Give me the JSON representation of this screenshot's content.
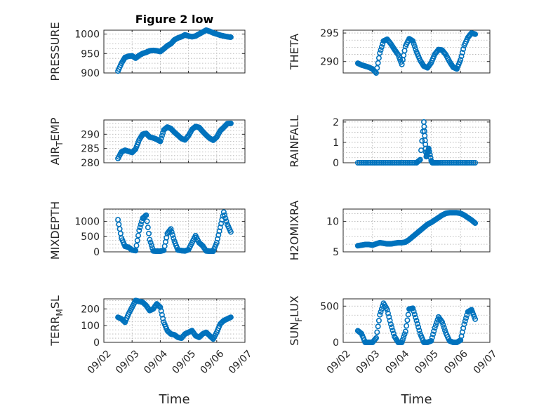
{
  "figure": {
    "title": "Figure 2 low",
    "marker_color": "#0072BD"
  },
  "chart_data": [
    {
      "type": "scatter",
      "name": "PRESSURE",
      "ylabel": "PRESSURE",
      "ylabel_sub": "",
      "title": "Figure 2 low",
      "xlabel": "",
      "show_x_ticklabels": false,
      "xlim": [
        "09/02",
        "09/07"
      ],
      "ylim": [
        900,
        1010
      ],
      "yticks": [
        900,
        950,
        1000
      ],
      "grid": true,
      "x": [
        "09/02 12:00",
        "09/02 15:00",
        "09/02 18:00",
        "09/02 21:00",
        "09/03 00:00",
        "09/03 03:00",
        "09/03 06:00",
        "09/03 09:00",
        "09/03 12:00",
        "09/03 15:00",
        "09/03 18:00",
        "09/03 21:00",
        "09/04 00:00",
        "09/04 03:00",
        "09/04 06:00",
        "09/04 09:00",
        "09/04 12:00",
        "09/04 15:00",
        "09/04 18:00",
        "09/04 21:00",
        "09/05 00:00",
        "09/05 03:00",
        "09/05 06:00",
        "09/05 09:00",
        "09/05 12:00",
        "09/05 15:00",
        "09/05 18:00",
        "09/05 21:00",
        "09/06 00:00",
        "09/06 03:00",
        "09/06 06:00",
        "09/06 09:00",
        "09/06 12:00"
      ],
      "y": [
        905,
        925,
        940,
        943,
        944,
        938,
        945,
        950,
        953,
        957,
        958,
        957,
        955,
        962,
        970,
        975,
        985,
        990,
        993,
        998,
        995,
        993,
        995,
        1000,
        1005,
        1010,
        1007,
        1003,
        1000,
        997,
        995,
        993,
        992
      ]
    },
    {
      "type": "scatter",
      "name": "THETA",
      "ylabel": "THETA",
      "ylabel_sub": "",
      "xlabel": "",
      "show_x_ticklabels": false,
      "xlim": [
        "09/02",
        "09/07"
      ],
      "ylim": [
        288,
        295.5
      ],
      "yticks": [
        290,
        295
      ],
      "grid": true,
      "x": [
        "09/02 12:00",
        "09/02 15:00",
        "09/02 18:00",
        "09/02 21:00",
        "09/03 00:00",
        "09/03 03:00",
        "09/03 06:00",
        "09/03 09:00",
        "09/03 12:00",
        "09/03 15:00",
        "09/03 18:00",
        "09/03 21:00",
        "09/04 00:00",
        "09/04 03:00",
        "09/04 06:00",
        "09/04 09:00",
        "09/04 12:00",
        "09/04 15:00",
        "09/04 18:00",
        "09/04 21:00",
        "09/05 00:00",
        "09/05 03:00",
        "09/05 06:00",
        "09/05 09:00",
        "09/05 12:00",
        "09/05 15:00",
        "09/05 18:00",
        "09/05 21:00",
        "09/06 00:00",
        "09/06 03:00",
        "09/06 06:00",
        "09/06 09:00",
        "09/06 12:00"
      ],
      "y": [
        289.7,
        289.4,
        289.2,
        289.0,
        288.7,
        288.0,
        291.5,
        293.6,
        293.9,
        293.1,
        292.1,
        291.2,
        289.5,
        292.7,
        294.0,
        293.6,
        291.7,
        290.2,
        289.2,
        288.9,
        289.8,
        291.3,
        292.1,
        292.0,
        291.2,
        290.0,
        289.0,
        288.7,
        290.3,
        292.8,
        294.2,
        295.0,
        294.8
      ]
    },
    {
      "type": "scatter",
      "name": "AIR_TEMP",
      "ylabel": "AIR",
      "ylabel_sub": "T",
      "ylabel_rest": "EMP",
      "xlabel": "",
      "show_x_ticklabels": false,
      "xlim": [
        "09/02",
        "09/07"
      ],
      "ylim": [
        280,
        295
      ],
      "yticks": [
        280,
        285,
        290
      ],
      "grid": true,
      "x": [
        "09/02 12:00",
        "09/02 15:00",
        "09/02 18:00",
        "09/02 21:00",
        "09/03 00:00",
        "09/03 03:00",
        "09/03 06:00",
        "09/03 09:00",
        "09/03 12:00",
        "09/03 15:00",
        "09/03 18:00",
        "09/03 21:00",
        "09/04 00:00",
        "09/04 03:00",
        "09/04 06:00",
        "09/04 09:00",
        "09/04 12:00",
        "09/04 15:00",
        "09/04 18:00",
        "09/04 21:00",
        "09/05 00:00",
        "09/05 03:00",
        "09/05 06:00",
        "09/05 09:00",
        "09/05 12:00",
        "09/05 15:00",
        "09/05 18:00",
        "09/05 21:00",
        "09/06 00:00",
        "09/06 03:00",
        "09/06 06:00",
        "09/06 09:00",
        "09/06 12:00"
      ],
      "y": [
        281.5,
        283.8,
        284.4,
        284.0,
        283.6,
        284.8,
        288.0,
        290.0,
        290.3,
        289.0,
        288.7,
        288.2,
        287.5,
        291.5,
        292.5,
        292.0,
        290.7,
        289.6,
        288.5,
        288.0,
        289.5,
        291.7,
        292.7,
        292.4,
        291.0,
        289.7,
        288.6,
        287.9,
        289.0,
        291.2,
        292.4,
        293.7,
        293.8
      ]
    },
    {
      "type": "scatter",
      "name": "RAINFALL",
      "ylabel": "RAINFALL",
      "ylabel_sub": "",
      "xlabel": "",
      "show_x_ticklabels": false,
      "xlim": [
        "09/02",
        "09/07"
      ],
      "ylim": [
        0,
        2.1
      ],
      "yticks": [
        0,
        1,
        2
      ],
      "grid": true,
      "x": [
        "09/02 12:00",
        "09/02 18:00",
        "09/03 00:00",
        "09/03 06:00",
        "09/03 12:00",
        "09/03 18:00",
        "09/04 00:00",
        "09/04 06:00",
        "09/04 12:00",
        "09/04 15:00",
        "09/04 18:00",
        "09/04 19:00",
        "09/04 20:00",
        "09/04 21:00",
        "09/04 22:00",
        "09/05 00:00",
        "09/05 01:00",
        "09/05 03:00",
        "09/05 06:00",
        "09/05 12:00",
        "09/05 18:00",
        "09/06 00:00",
        "09/06 06:00",
        "09/06 12:00"
      ],
      "y": [
        0,
        0,
        0,
        0,
        0,
        0,
        0,
        0,
        0,
        0.15,
        2.0,
        1.1,
        0.3,
        0.5,
        0.7,
        0.1,
        0,
        0,
        0,
        0,
        0,
        0,
        0,
        0
      ]
    },
    {
      "type": "scatter",
      "name": "MIXDEPTH",
      "ylabel": "MIXDEPTH",
      "ylabel_sub": "",
      "xlabel": "",
      "show_x_ticklabels": false,
      "xlim": [
        "09/02",
        "09/07"
      ],
      "ylim": [
        0,
        1400
      ],
      "yticks": [
        0,
        500,
        1000
      ],
      "grid": true,
      "x": [
        "09/02 12:00",
        "09/02 15:00",
        "09/02 18:00",
        "09/02 21:00",
        "09/03 00:00",
        "09/03 03:00",
        "09/03 06:00",
        "09/03 09:00",
        "09/03 12:00",
        "09/03 15:00",
        "09/03 18:00",
        "09/03 21:00",
        "09/04 00:00",
        "09/04 03:00",
        "09/04 06:00",
        "09/04 09:00",
        "09/04 12:00",
        "09/04 15:00",
        "09/04 18:00",
        "09/04 21:00",
        "09/05 00:00",
        "09/05 03:00",
        "09/05 06:00",
        "09/05 09:00",
        "09/05 12:00",
        "09/05 15:00",
        "09/05 18:00",
        "09/05 21:00",
        "09/06 00:00",
        "09/06 03:00",
        "09/06 06:00",
        "09/06 09:00",
        "09/06 12:00"
      ],
      "y": [
        1050,
        450,
        180,
        150,
        60,
        40,
        700,
        1100,
        1200,
        400,
        30,
        20,
        20,
        50,
        600,
        750,
        350,
        60,
        40,
        30,
        70,
        300,
        530,
        300,
        200,
        30,
        20,
        20,
        300,
        800,
        1300,
        900,
        650
      ]
    },
    {
      "type": "scatter",
      "name": "H2OMIXRA",
      "ylabel": "H2OMIXRA",
      "ylabel_sub": "",
      "xlabel": "",
      "show_x_ticklabels": false,
      "xlim": [
        "09/02",
        "09/07"
      ],
      "ylim": [
        5,
        12
      ],
      "yticks": [
        5,
        10
      ],
      "grid": true,
      "x": [
        "09/02 12:00",
        "09/02 15:00",
        "09/02 18:00",
        "09/02 21:00",
        "09/03 00:00",
        "09/03 03:00",
        "09/03 06:00",
        "09/03 09:00",
        "09/03 12:00",
        "09/03 15:00",
        "09/03 18:00",
        "09/03 21:00",
        "09/04 00:00",
        "09/04 03:00",
        "09/04 06:00",
        "09/04 09:00",
        "09/04 12:00",
        "09/04 15:00",
        "09/04 18:00",
        "09/04 21:00",
        "09/05 00:00",
        "09/05 03:00",
        "09/05 06:00",
        "09/05 09:00",
        "09/05 12:00",
        "09/05 15:00",
        "09/05 18:00",
        "09/05 21:00",
        "09/06 00:00",
        "09/06 03:00",
        "09/06 06:00",
        "09/06 09:00",
        "09/06 12:00"
      ],
      "y": [
        6.0,
        6.1,
        6.2,
        6.2,
        6.1,
        6.3,
        6.5,
        6.4,
        6.3,
        6.3,
        6.4,
        6.5,
        6.5,
        6.6,
        7.0,
        7.5,
        8.0,
        8.5,
        9.0,
        9.5,
        9.8,
        10.2,
        10.6,
        11.0,
        11.3,
        11.4,
        11.4,
        11.4,
        11.3,
        11.0,
        10.6,
        10.2,
        9.7
      ]
    },
    {
      "type": "scatter",
      "name": "TERR_MSL",
      "ylabel": "TERR",
      "ylabel_sub": "M",
      "ylabel_rest": "SL",
      "xlabel": "Time",
      "show_x_ticklabels": true,
      "xlim": [
        "09/02",
        "09/07"
      ],
      "ylim": [
        0,
        260
      ],
      "yticks": [
        0,
        100,
        200
      ],
      "grid": true,
      "xticks": [
        "09/02",
        "09/03",
        "09/04",
        "09/05",
        "09/06",
        "09/07"
      ],
      "x": [
        "09/02 12:00",
        "09/02 15:00",
        "09/02 18:00",
        "09/02 21:00",
        "09/03 00:00",
        "09/03 03:00",
        "09/03 06:00",
        "09/03 09:00",
        "09/03 12:00",
        "09/03 15:00",
        "09/03 18:00",
        "09/03 21:00",
        "09/04 00:00",
        "09/04 03:00",
        "09/04 06:00",
        "09/04 09:00",
        "09/04 12:00",
        "09/04 15:00",
        "09/04 18:00",
        "09/04 21:00",
        "09/05 00:00",
        "09/05 03:00",
        "09/05 06:00",
        "09/05 09:00",
        "09/05 12:00",
        "09/05 15:00",
        "09/05 18:00",
        "09/05 21:00",
        "09/06 00:00",
        "09/06 03:00",
        "09/06 06:00",
        "09/06 09:00",
        "09/06 12:00"
      ],
      "y": [
        150,
        140,
        120,
        170,
        210,
        250,
        245,
        240,
        220,
        190,
        200,
        230,
        210,
        120,
        70,
        50,
        45,
        30,
        25,
        50,
        60,
        70,
        40,
        30,
        50,
        60,
        40,
        20,
        60,
        110,
        130,
        140,
        150
      ]
    },
    {
      "type": "scatter",
      "name": "SUN_FLUX",
      "ylabel": "SUN",
      "ylabel_sub": "F",
      "ylabel_rest": "LUX",
      "xlabel": "Time",
      "show_x_ticklabels": true,
      "xlim": [
        "09/02",
        "09/07"
      ],
      "ylim": [
        0,
        600
      ],
      "yticks": [
        0,
        500
      ],
      "grid": true,
      "xticks": [
        "09/02",
        "09/03",
        "09/04",
        "09/05",
        "09/06",
        "09/07"
      ],
      "x": [
        "09/02 12:00",
        "09/02 15:00",
        "09/02 18:00",
        "09/02 21:00",
        "09/03 00:00",
        "09/03 03:00",
        "09/03 06:00",
        "09/03 09:00",
        "09/03 12:00",
        "09/03 15:00",
        "09/03 18:00",
        "09/03 21:00",
        "09/04 00:00",
        "09/04 03:00",
        "09/04 06:00",
        "09/04 09:00",
        "09/04 12:00",
        "09/04 15:00",
        "09/04 18:00",
        "09/04 21:00",
        "09/05 00:00",
        "09/05 03:00",
        "09/05 06:00",
        "09/05 09:00",
        "09/05 12:00",
        "09/05 15:00",
        "09/05 18:00",
        "09/05 21:00",
        "09/06 00:00",
        "09/06 03:00",
        "09/06 06:00",
        "09/06 09:00",
        "09/06 12:00"
      ],
      "y": [
        160,
        120,
        0,
        0,
        0,
        60,
        380,
        540,
        450,
        250,
        80,
        0,
        0,
        150,
        460,
        470,
        300,
        120,
        0,
        0,
        20,
        200,
        350,
        280,
        130,
        20,
        0,
        0,
        30,
        250,
        420,
        450,
        320
      ]
    }
  ]
}
